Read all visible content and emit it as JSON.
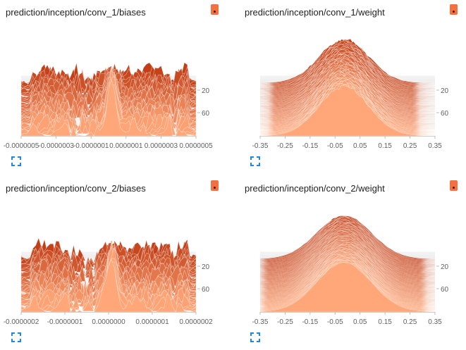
{
  "cards": [
    {
      "title": "prediction/inception/conv_1/biases",
      "icons": {
        "menu": "dots-vertical-icon",
        "expand": "fullscreen-icon"
      },
      "chart_data": {
        "type": "area",
        "title": "prediction/inception/conv_1/biases",
        "xlabel": "",
        "ylabel": "",
        "x_ticks": [
          "-0.0000005",
          "-0.0000003",
          "-0.0000001",
          "0.0000001",
          "0.0000003",
          "0.0000005"
        ],
        "y_ticks": [
          20,
          60
        ],
        "profile": "ragged",
        "series_count": 70,
        "colors": {
          "front": "#ffa778",
          "back": "#c23e16",
          "line": "#ffffff"
        }
      }
    },
    {
      "title": "prediction/inception/conv_1/weight",
      "icons": {
        "menu": "dots-vertical-icon",
        "expand": "fullscreen-icon"
      },
      "chart_data": {
        "type": "area",
        "title": "prediction/inception/conv_1/weight",
        "xlabel": "",
        "ylabel": "",
        "x_ticks": [
          "-0.35",
          "-0.25",
          "-0.15",
          "-0.05",
          "0.05",
          "0.15",
          "0.25",
          "0.35"
        ],
        "y_ticks": [
          20,
          60
        ],
        "profile": "bell",
        "series_count": 70,
        "colors": {
          "front": "#ffa778",
          "back": "#c23e16",
          "line": "#ffffff"
        }
      }
    },
    {
      "title": "prediction/inception/conv_2/biases",
      "icons": {
        "menu": "dots-vertical-icon",
        "expand": "fullscreen-icon"
      },
      "chart_data": {
        "type": "area",
        "title": "prediction/inception/conv_2/biases",
        "xlabel": "",
        "ylabel": "",
        "x_ticks": [
          "-0.0000002",
          "-0.0000001",
          "0.0000000",
          "0.0000001",
          "0.0000002"
        ],
        "y_ticks": [
          20,
          60
        ],
        "profile": "ragged",
        "series_count": 70,
        "colors": {
          "front": "#ffa778",
          "back": "#c23e16",
          "line": "#ffffff"
        }
      }
    },
    {
      "title": "prediction/inception/conv_2/weight",
      "icons": {
        "menu": "dots-vertical-icon",
        "expand": "fullscreen-icon"
      },
      "chart_data": {
        "type": "area",
        "title": "prediction/inception/conv_2/weight",
        "xlabel": "",
        "ylabel": "",
        "x_ticks": [
          "-0.35",
          "-0.25",
          "-0.15",
          "-0.05",
          "0.05",
          "0.15",
          "0.25",
          "0.35"
        ],
        "y_ticks": [
          20,
          60
        ],
        "profile": "bell-smooth",
        "series_count": 70,
        "colors": {
          "front": "#ffa778",
          "back": "#c23e16",
          "line": "#ffffff"
        }
      }
    }
  ]
}
